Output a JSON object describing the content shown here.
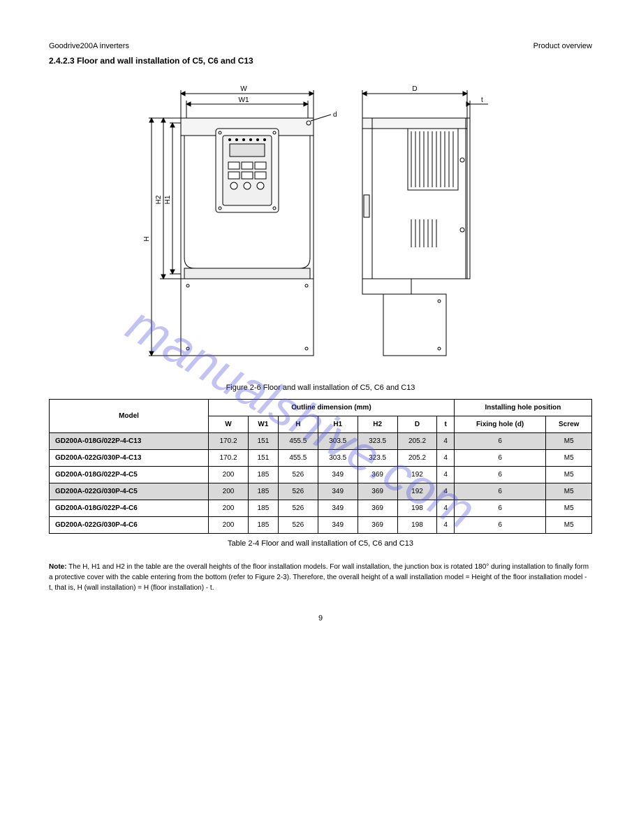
{
  "header": {
    "product": "Goodrive200A inverters",
    "section": "Product overview"
  },
  "title": "2.4.2.3 Floor and wall installation of C5, C6 and C13",
  "diagram": {
    "labels": {
      "W": "W",
      "W1": "W1",
      "D": "D",
      "t": "t",
      "d": "d",
      "H": "H",
      "H1": "H1",
      "H2": "H2"
    },
    "colors": {
      "line": "#000000",
      "fill_light": "#f5f5f5",
      "fill_mid": "#e8e8e8"
    }
  },
  "caption_fig": "Figure 2-6 Floor and wall installation of C5, C6 and C13",
  "table": {
    "header_group1": "Outline dimension (mm)",
    "header_group2": "Installing hole position",
    "columns": [
      "Model",
      "W",
      "W1",
      "H",
      "H1",
      "H2",
      "D",
      "t",
      "Fixing hole (d)",
      "Screw"
    ],
    "rows": [
      {
        "shaded": true,
        "cells": [
          "GD200A-018G/022P-4-C13",
          "170.2",
          "151",
          "455.5",
          "303.5",
          "323.5",
          "205.2",
          "4",
          "6",
          "M5"
        ]
      },
      {
        "shaded": false,
        "cells": [
          "GD200A-022G/030P-4-C13",
          "170.2",
          "151",
          "455.5",
          "303.5",
          "323.5",
          "205.2",
          "4",
          "6",
          "M5"
        ]
      },
      {
        "shaded": false,
        "cells": [
          "GD200A-018G/022P-4-C5",
          "200",
          "185",
          "526",
          "349",
          "369",
          "192",
          "4",
          "6",
          "M5"
        ]
      },
      {
        "shaded": true,
        "cells": [
          "GD200A-022G/030P-4-C5",
          "200",
          "185",
          "526",
          "349",
          "369",
          "192",
          "4",
          "6",
          "M5"
        ]
      },
      {
        "shaded": false,
        "cells": [
          "GD200A-018G/022P-4-C6",
          "200",
          "185",
          "526",
          "349",
          "369",
          "198",
          "4",
          "6",
          "M5"
        ]
      },
      {
        "shaded": false,
        "cells": [
          "GD200A-022G/030P-4-C6",
          "200",
          "185",
          "526",
          "349",
          "369",
          "198",
          "4",
          "6",
          "M5"
        ]
      }
    ]
  },
  "caption_table": "Table 2-4 Floor and wall installation of C5, C6 and C13",
  "footnote": {
    "lead": "Note:",
    "body": " The H, H1 and H2 in the table are the overall heights of the floor installation models. For wall installation, the junction box is rotated 180° during installation to finally form a protective cover with the cable entering from the bottom (refer to Figure 2-3). Therefore, the overall height of a wall installation model = Height of the floor installation model - t, that is, H (wall installation) = H (floor installation) - t."
  },
  "page_number": "9",
  "watermark": "manualshive.com"
}
